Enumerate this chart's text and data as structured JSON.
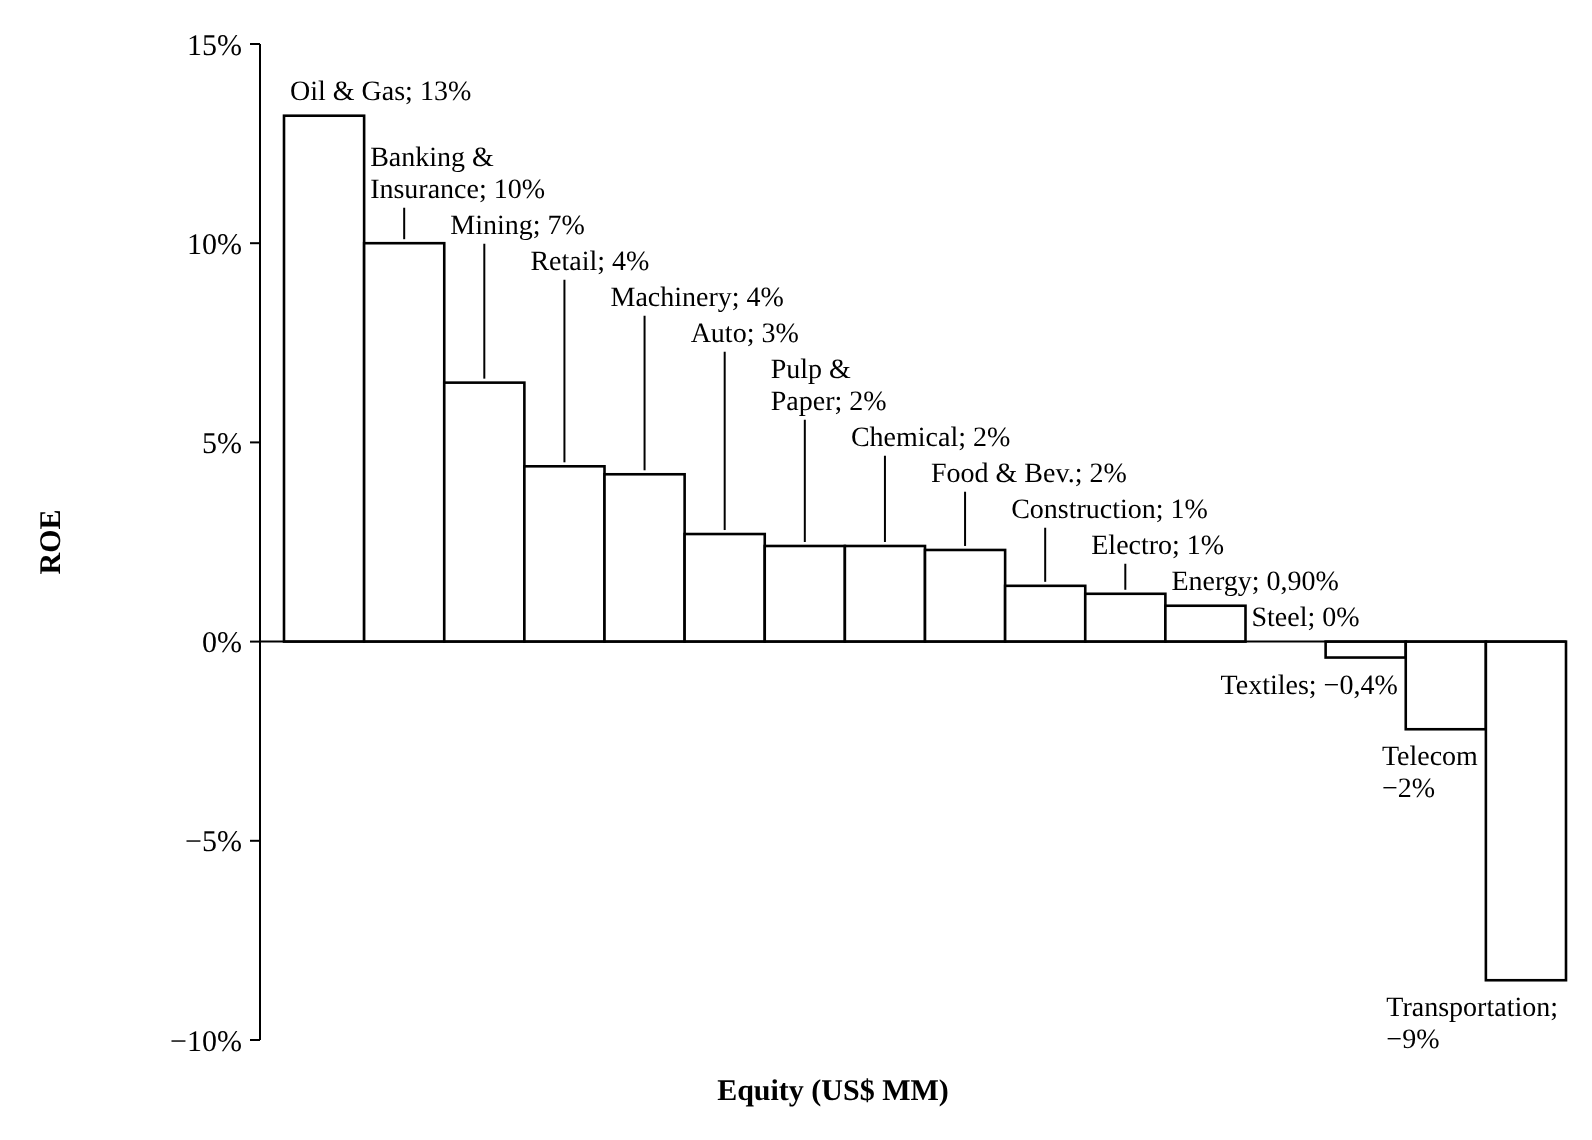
{
  "chart_data": {
    "type": "bar",
    "xlabel": "Equity (US$ MM)",
    "ylabel": "ROE",
    "categories": [
      null,
      null,
      null,
      null,
      null,
      null,
      null,
      null,
      null,
      null,
      null,
      null,
      null,
      null,
      null,
      null
    ],
    "values": [
      13.2,
      10.0,
      6.5,
      4.4,
      4.2,
      2.7,
      2.4,
      2.4,
      2.3,
      1.4,
      1.2,
      0.9,
      0.0,
      -0.4,
      -2.2,
      -8.5
    ],
    "color": "#ffffff",
    "ylim": [
      -10,
      15
    ],
    "yticks": [
      {
        "value": -10,
        "label": "−10%"
      },
      {
        "value": -5,
        "label": "−5%"
      },
      {
        "value": 0,
        "label": "0%"
      },
      {
        "value": 5,
        "label": "5%"
      },
      {
        "value": 10,
        "label": "10%"
      },
      {
        "value": 15,
        "label": "15%"
      }
    ],
    "annotations": [
      "Oil & Gas; 13%",
      "Banking &\nInsurance; 10%",
      "Mining; 7%",
      "Retail; 4%",
      "Machinery; 4%",
      "Auto; 3%",
      "Pulp &\nPaper; 2%",
      "Chemical; 2%",
      "Food & Bev.; 2%",
      "Construction; 1%",
      "Electro; 1%",
      "Energy; 0,90%",
      "Steel; 0%",
      "Textiles; −0,4%",
      "Telecom\n−2%",
      "Transportation;\n−9%"
    ]
  }
}
